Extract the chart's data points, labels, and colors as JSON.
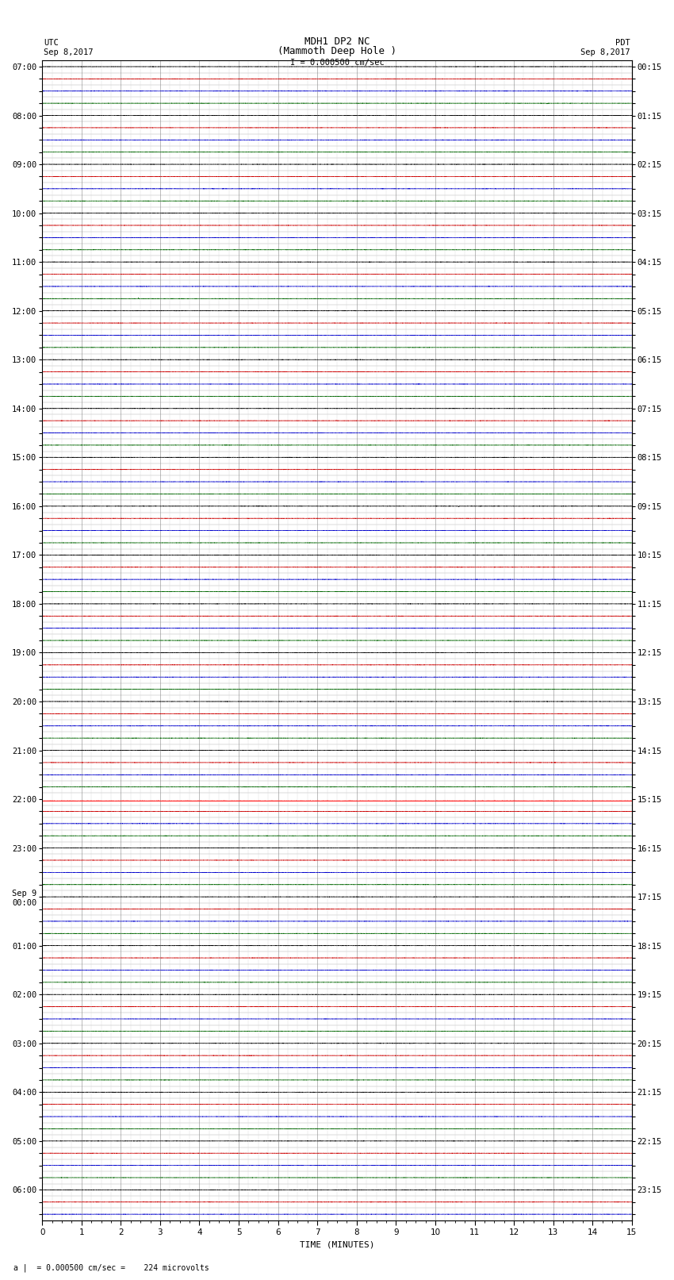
{
  "title_line1": "MDH1 DP2 NC",
  "title_line2": "(Mammoth Deep Hole )",
  "scale_label": "I = 0.000500 cm/sec",
  "left_header": "UTC",
  "left_date": "Sep 8,2017",
  "right_header": "PDT",
  "right_date": "Sep 8,2017",
  "footer_label": "a |  = 0.000500 cm/sec =    224 microvolts",
  "xlabel": "TIME (MINUTES)",
  "utc_labels": [
    "07:00",
    "",
    "",
    "",
    "08:00",
    "",
    "",
    "",
    "09:00",
    "",
    "",
    "",
    "10:00",
    "",
    "",
    "",
    "11:00",
    "",
    "",
    "",
    "12:00",
    "",
    "",
    "",
    "13:00",
    "",
    "",
    "",
    "14:00",
    "",
    "",
    "",
    "15:00",
    "",
    "",
    "",
    "16:00",
    "",
    "",
    "",
    "17:00",
    "",
    "",
    "",
    "18:00",
    "",
    "",
    "",
    "19:00",
    "",
    "",
    "",
    "20:00",
    "",
    "",
    "",
    "21:00",
    "",
    "",
    "",
    "22:00",
    "",
    "",
    "",
    "23:00",
    "",
    "",
    "",
    "Sep 9\n00:00",
    "",
    "",
    "",
    "01:00",
    "",
    "",
    "",
    "02:00",
    "",
    "",
    "",
    "03:00",
    "",
    "",
    "",
    "04:00",
    "",
    "",
    "",
    "05:00",
    "",
    "",
    "",
    "06:00",
    "",
    ""
  ],
  "pdt_labels": [
    "00:15",
    "",
    "",
    "",
    "01:15",
    "",
    "",
    "",
    "02:15",
    "",
    "",
    "",
    "03:15",
    "",
    "",
    "",
    "04:15",
    "",
    "",
    "",
    "05:15",
    "",
    "",
    "",
    "06:15",
    "",
    "",
    "",
    "07:15",
    "",
    "",
    "",
    "08:15",
    "",
    "",
    "",
    "09:15",
    "",
    "",
    "",
    "10:15",
    "",
    "",
    "",
    "11:15",
    "",
    "",
    "",
    "12:15",
    "",
    "",
    "",
    "13:15",
    "",
    "",
    "",
    "14:15",
    "",
    "",
    "",
    "15:15",
    "",
    "",
    "",
    "16:15",
    "",
    "",
    "",
    "17:15",
    "",
    "",
    "",
    "18:15",
    "",
    "",
    "",
    "19:15",
    "",
    "",
    "",
    "20:15",
    "",
    "",
    "",
    "21:15",
    "",
    "",
    "",
    "22:15",
    "",
    "",
    "",
    "23:15",
    "",
    ""
  ],
  "n_rows": 95,
  "n_minutes": 15,
  "noise_amplitude": 0.06,
  "clipped_row": 60,
  "clipped_color": "#ff2222",
  "trace_color": "#000000",
  "row_colors": [
    "#000000",
    "#cc0000",
    "#0000cc",
    "#006600"
  ],
  "background_color": "#ffffff",
  "grid_major_color": "#888888",
  "grid_minor_color": "#cccccc",
  "title_fontsize": 9,
  "label_fontsize": 8,
  "tick_fontsize": 7.5,
  "footer_fontsize": 7
}
